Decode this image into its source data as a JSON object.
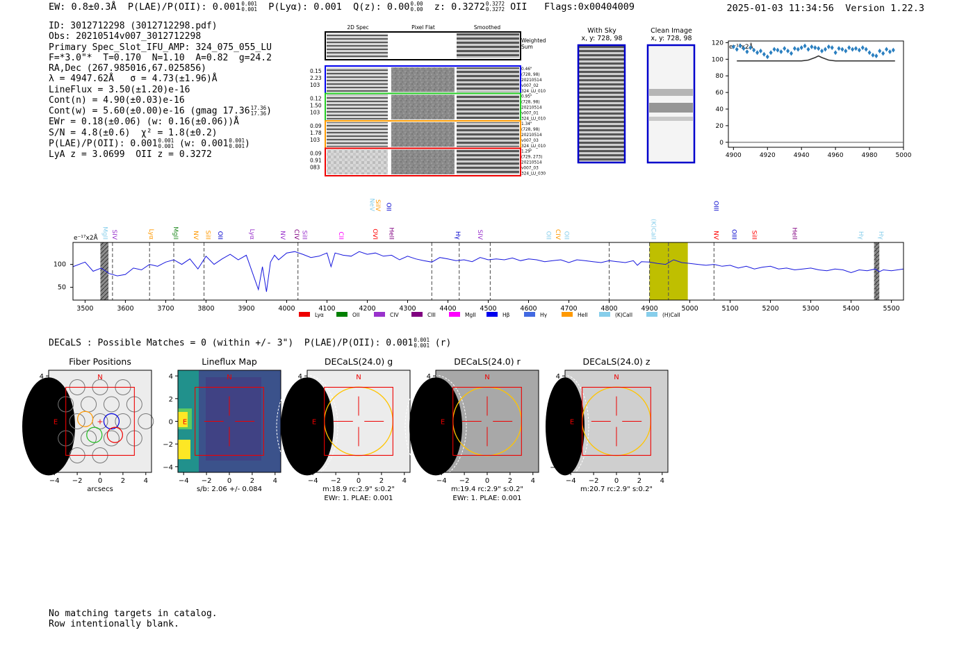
{
  "header": {
    "ew": "EW: 0.8±0.3Å",
    "plae_label": "P(LAE)/P(OII): 0.001",
    "plae_up": "0.001",
    "plae_lo": "0.001",
    "plya": "P(Lyα): 0.001",
    "qz_label": "Q(z): 0.00",
    "qz_up": "0.00",
    "qz_lo": "0.00",
    "z_label": "z: 0.3272",
    "z_up": "0.3272",
    "z_lo": "0.3272",
    "z_line": "OII",
    "flags": "Flags:0x00404009",
    "timestamp": "2025-01-03 11:34:56",
    "version": "Version 1.22.3"
  },
  "info": {
    "id": "ID: 3012712298 (3012712298.pdf)",
    "obs": "Obs: 20210514v007_3012712298",
    "primary": "Primary Spec_Slot_IFU_AMP: 324_075_055_LU",
    "params": "F=*3.0\"*  T=0.170  N=1.10  A=0.82  g=24.2",
    "radec": "RA,Dec (267.985016,67.025856)",
    "lambda": "λ = 4947.62Å   σ = 4.73(±1.96)Å",
    "lineflux": "LineFlux = 3.50(±1.20)e-16",
    "contn": "Cont(n) = 4.90(±0.03)e-16",
    "contw": "Cont(w) = 5.60(±0.00)e-16 (gmag 17.36",
    "contw_up": "17.36",
    "contw_lo": "17.36",
    "contw_end": ")",
    "ewr": "EWr = 0.18(±0.06) (w: 0.16(±0.06))Å",
    "sn": "S/N = 4.8(±0.6)  χ² = 1.8(±0.2)",
    "plae": "P(LAE)/P(OII): 0.001",
    "plae_up": "0.001",
    "plae_lo": "0.001",
    "plae_w": " (w: 0.001",
    "plae_w_up": "0.001",
    "plae_w_lo": "0.001",
    "plae_w_end": ")",
    "lyaz": "LyA z = 3.0699  OII z = 0.3272"
  },
  "cutouts": {
    "columns": [
      "2D Spec",
      "Pixel Flat",
      "Smoothed"
    ],
    "weighted_label_1": "Weighted",
    "weighted_label_2": "Sum",
    "fibers": [
      {
        "w1": "0.15",
        "w2": "2.23",
        "w3": "103",
        "r1": "0.46\"",
        "r2": "(728, 98)",
        "r3": "20210514",
        "r4": "v007_02",
        "r5": "324_LU_010",
        "color": "#0000ee"
      },
      {
        "w1": "0.12",
        "w2": "1.50",
        "w3": "103",
        "r1": "0.95\"",
        "r2": "(728, 98)",
        "r3": "20210514",
        "r4": "v007_01",
        "r5": "324_LU_010",
        "color": "#22cc22"
      },
      {
        "w1": "0.09",
        "w2": "1.78",
        "w3": "103",
        "r1": "1.34\"",
        "r2": "(728, 98)",
        "r3": "20210514",
        "r4": "v007_03",
        "r5": "324_LU_010",
        "color": "#ff9900"
      },
      {
        "w1": "0.09",
        "w2": "0.91",
        "w3": "083",
        "r1": "1.29\"",
        "r2": "(729, 273)",
        "r3": "20210514",
        "r4": "v007_03",
        "r5": "324_LU_030",
        "color": "#ee0000"
      }
    ],
    "with_sky_title": "With Sky",
    "with_sky_xy": "x, y: 728, 98",
    "clean_title": "Clean Image",
    "clean_xy": "x, y: 728, 98"
  },
  "chart_data": [
    {
      "type": "scatter",
      "title": "zoom line fit",
      "units_label": "e⁻¹⁷x2Å",
      "xlim": [
        4897,
        5000
      ],
      "ylim": [
        -6,
        122
      ],
      "xticks": [
        4900,
        4920,
        4940,
        4960,
        4980,
        5000
      ],
      "yticks": [
        0,
        20,
        40,
        60,
        80,
        100,
        120
      ],
      "points_x": [
        4900,
        4902,
        4904,
        4906,
        4908,
        4910,
        4912,
        4914,
        4916,
        4918,
        4920,
        4922,
        4924,
        4926,
        4928,
        4930,
        4932,
        4934,
        4936,
        4938,
        4940,
        4942,
        4944,
        4946,
        4948,
        4950,
        4952,
        4954,
        4956,
        4958,
        4960,
        4962,
        4964,
        4966,
        4968,
        4970,
        4972,
        4974,
        4976,
        4978,
        4980,
        4982,
        4984,
        4986,
        4988,
        4990,
        4992,
        4994
      ],
      "points_y": [
        115,
        112,
        116,
        113,
        109,
        114,
        111,
        108,
        110,
        106,
        103,
        108,
        112,
        111,
        109,
        113,
        110,
        107,
        113,
        112,
        114,
        116,
        112,
        115,
        114,
        113,
        110,
        112,
        115,
        114,
        108,
        113,
        112,
        110,
        114,
        112,
        113,
        111,
        114,
        112,
        108,
        105,
        104,
        110,
        107,
        112,
        109,
        111
      ],
      "model_x": [
        4902,
        4940,
        4944,
        4948,
        4950,
        4952,
        4956,
        4960,
        4995
      ],
      "model_y": [
        98,
        98,
        99,
        102,
        104,
        102,
        99,
        98,
        98
      ]
    },
    {
      "type": "line",
      "title": "full spectrum",
      "units_label": "e⁻¹⁷x2Å",
      "xlim": [
        3470,
        5530
      ],
      "ylim": [
        22,
        148
      ],
      "xticks": [
        3500,
        3600,
        3700,
        3800,
        3900,
        4000,
        4100,
        4200,
        4300,
        4400,
        4500,
        4600,
        4700,
        4800,
        4900,
        5000,
        5100,
        5200,
        5300,
        5400,
        5500
      ],
      "yticks": [
        50,
        100
      ],
      "x": [
        3470,
        3500,
        3520,
        3540,
        3560,
        3580,
        3600,
        3620,
        3640,
        3660,
        3680,
        3700,
        3720,
        3740,
        3760,
        3780,
        3800,
        3820,
        3840,
        3860,
        3880,
        3900,
        3920,
        3930,
        3940,
        3950,
        3960,
        3970,
        3980,
        4000,
        4020,
        4040,
        4060,
        4080,
        4100,
        4110,
        4120,
        4140,
        4160,
        4180,
        4200,
        4220,
        4240,
        4260,
        4280,
        4300,
        4320,
        4340,
        4360,
        4380,
        4400,
        4420,
        4440,
        4460,
        4480,
        4500,
        4520,
        4540,
        4560,
        4580,
        4600,
        4620,
        4640,
        4660,
        4680,
        4700,
        4720,
        4740,
        4760,
        4780,
        4800,
        4820,
        4840,
        4860,
        4870,
        4880,
        4900,
        4920,
        4940,
        4960,
        4980,
        5000,
        5020,
        5040,
        5060,
        5080,
        5100,
        5120,
        5140,
        5160,
        5180,
        5200,
        5220,
        5240,
        5260,
        5280,
        5300,
        5320,
        5340,
        5360,
        5380,
        5400,
        5420,
        5440,
        5460,
        5470,
        5480,
        5500,
        5530
      ],
      "y": [
        95,
        105,
        85,
        92,
        80,
        75,
        78,
        92,
        88,
        100,
        96,
        105,
        110,
        100,
        112,
        90,
        118,
        100,
        112,
        122,
        110,
        120,
        70,
        45,
        95,
        40,
        105,
        120,
        110,
        125,
        128,
        122,
        115,
        118,
        125,
        95,
        125,
        120,
        118,
        128,
        122,
        125,
        118,
        120,
        110,
        118,
        112,
        108,
        105,
        115,
        112,
        108,
        110,
        106,
        115,
        110,
        112,
        110,
        114,
        108,
        112,
        110,
        106,
        108,
        110,
        104,
        110,
        108,
        106,
        104,
        108,
        106,
        104,
        108,
        98,
        106,
        105,
        102,
        100,
        110,
        104,
        102,
        100,
        98,
        100,
        96,
        98,
        92,
        96,
        90,
        94,
        96,
        90,
        92,
        88,
        90,
        92,
        88,
        86,
        90,
        88,
        82,
        88,
        86,
        90,
        84,
        88,
        86,
        90
      ],
      "line_markers": [
        {
          "wave": 3545,
          "label": "MgII",
          "color": "#87ceeb",
          "level": 0
        },
        {
          "wave": 3568,
          "label": "SIV",
          "color": "#9932cc",
          "level": 0
        },
        {
          "wave": 3660,
          "label": "Lyα",
          "color": "#ff9900",
          "level": 0
        },
        {
          "wave": 3720,
          "label": "MgII",
          "color": "#228b22",
          "level": 0
        },
        {
          "wave": 3770,
          "label": "NV",
          "color": "#ff9900",
          "level": 0
        },
        {
          "wave": 3800,
          "label": "SiII",
          "color": "#ff9900",
          "level": 0
        },
        {
          "wave": 3830,
          "label": "OII",
          "color": "#0000cd",
          "level": 0
        },
        {
          "wave": 3910,
          "label": "Lyα",
          "color": "#9932cc",
          "level": 0
        },
        {
          "wave": 3985,
          "label": "NV",
          "color": "#9932cc",
          "level": 0
        },
        {
          "wave": 4020,
          "label": "CIV",
          "color": "#800080",
          "level": 0
        },
        {
          "wave": 4040,
          "label": "SiII",
          "color": "#9932cc",
          "level": 0
        },
        {
          "wave": 4130,
          "label": "CII",
          "color": "#ff00ff",
          "level": 0
        },
        {
          "wave": 4215,
          "label": "OVI",
          "color": "#ff0000",
          "level": 0
        },
        {
          "wave": 4255,
          "label": "HeII",
          "color": "#800080",
          "level": 0
        },
        {
          "wave": 4207,
          "label": "NeV",
          "color": "#87ceeb",
          "level": 1
        },
        {
          "wave": 4222,
          "label": "SiIV",
          "color": "#ff9900",
          "level": 1
        },
        {
          "wave": 4248,
          "label": "OII",
          "color": "#0000cd",
          "level": 1
        },
        {
          "wave": 4420,
          "label": "Hγ",
          "color": "#0000cd",
          "level": 0
        },
        {
          "wave": 4475,
          "label": "SIV",
          "color": "#9932cc",
          "level": 0
        },
        {
          "wave": 4645,
          "label": "OII",
          "color": "#87ceeb",
          "level": 0
        },
        {
          "wave": 4668,
          "label": "CIV",
          "color": "#ff9900",
          "level": 0
        },
        {
          "wave": 4690,
          "label": "OII",
          "color": "#87ceeb",
          "level": 0
        },
        {
          "wave": 4905,
          "label": "(K)CaII",
          "color": "#87ceeb",
          "level": 0
        },
        {
          "wave": 5060,
          "label": "NV",
          "color": "#ff0000",
          "level": 0
        },
        {
          "wave": 5060,
          "label": "OIII",
          "color": "#0000cd",
          "level": 1
        },
        {
          "wave": 5105,
          "label": "OIII",
          "color": "#0000cd",
          "level": 0
        },
        {
          "wave": 5155,
          "label": "SiII",
          "color": "#ff0000",
          "level": 0
        },
        {
          "wave": 5255,
          "label": "HeII",
          "color": "#800080",
          "level": 0
        },
        {
          "wave": 5420,
          "label": "Hγ",
          "color": "#87ceeb",
          "level": 0
        },
        {
          "wave": 5470,
          "label": "Hγ",
          "color": "#87ceeb",
          "level": 0
        }
      ],
      "dashed_lines": [
        3568,
        3660,
        3720,
        3795,
        4028,
        4360,
        4428,
        4505,
        4800,
        4900,
        4947,
        5060,
        5462
      ],
      "gray_bands": [
        [
          3538,
          3558
        ],
        [
          5457,
          5470
        ]
      ],
      "yellow_band": [
        4900,
        4995
      ],
      "legend": [
        {
          "label": "Lyα",
          "color": "#ee0000"
        },
        {
          "label": "OII",
          "color": "#008000"
        },
        {
          "label": "CIV",
          "color": "#9932cc"
        },
        {
          "label": "CIII",
          "color": "#800080"
        },
        {
          "label": "MgII",
          "color": "#ff00ff"
        },
        {
          "label": "Hβ",
          "color": "#0000ee"
        },
        {
          "label": "Hγ",
          "color": "#4169e1"
        },
        {
          "label": "HeII",
          "color": "#ff9900"
        },
        {
          "label": "(K)CaII",
          "color": "#87ceeb"
        },
        {
          "label": "(H)CaII",
          "color": "#87ceeb"
        }
      ]
    }
  ],
  "decals": {
    "line_label": "DECaLS : Possible Matches = 0 (within +/- 3\")  P(LAE)/P(OII): 0.001",
    "line_up": "0.001",
    "line_lo": "0.001",
    "line_band": " (r)",
    "panels": [
      {
        "title": "Fiber Positions",
        "sub1": "arcsecs",
        "sub2": ""
      },
      {
        "title": "Lineflux Map",
        "sub1": "s/b: 2.06 +/- 0.084",
        "sub2": ""
      },
      {
        "title": "DECaLS(24.0) g",
        "sub1": "m:18.9 rc:2.9\"  s:0.2\"",
        "sub2": "EWr: 1. PLAE: 0.001"
      },
      {
        "title": "DECaLS(24.0) r",
        "sub1": "m:19.4 rc:2.9\"  s:0.2\"",
        "sub2": "EWr: 1. PLAE: 0.001"
      },
      {
        "title": "DECaLS(24.0) z",
        "sub1": "m:20.7 rc:2.9\"  s:0.2\"",
        "sub2": ""
      }
    ],
    "ticks": [
      "−4",
      "−2",
      "0",
      "2",
      "4"
    ],
    "north": "N",
    "east": "E"
  },
  "footer": {
    "line1": "No matching targets in catalog.",
    "line2": "Row intentionally blank."
  }
}
